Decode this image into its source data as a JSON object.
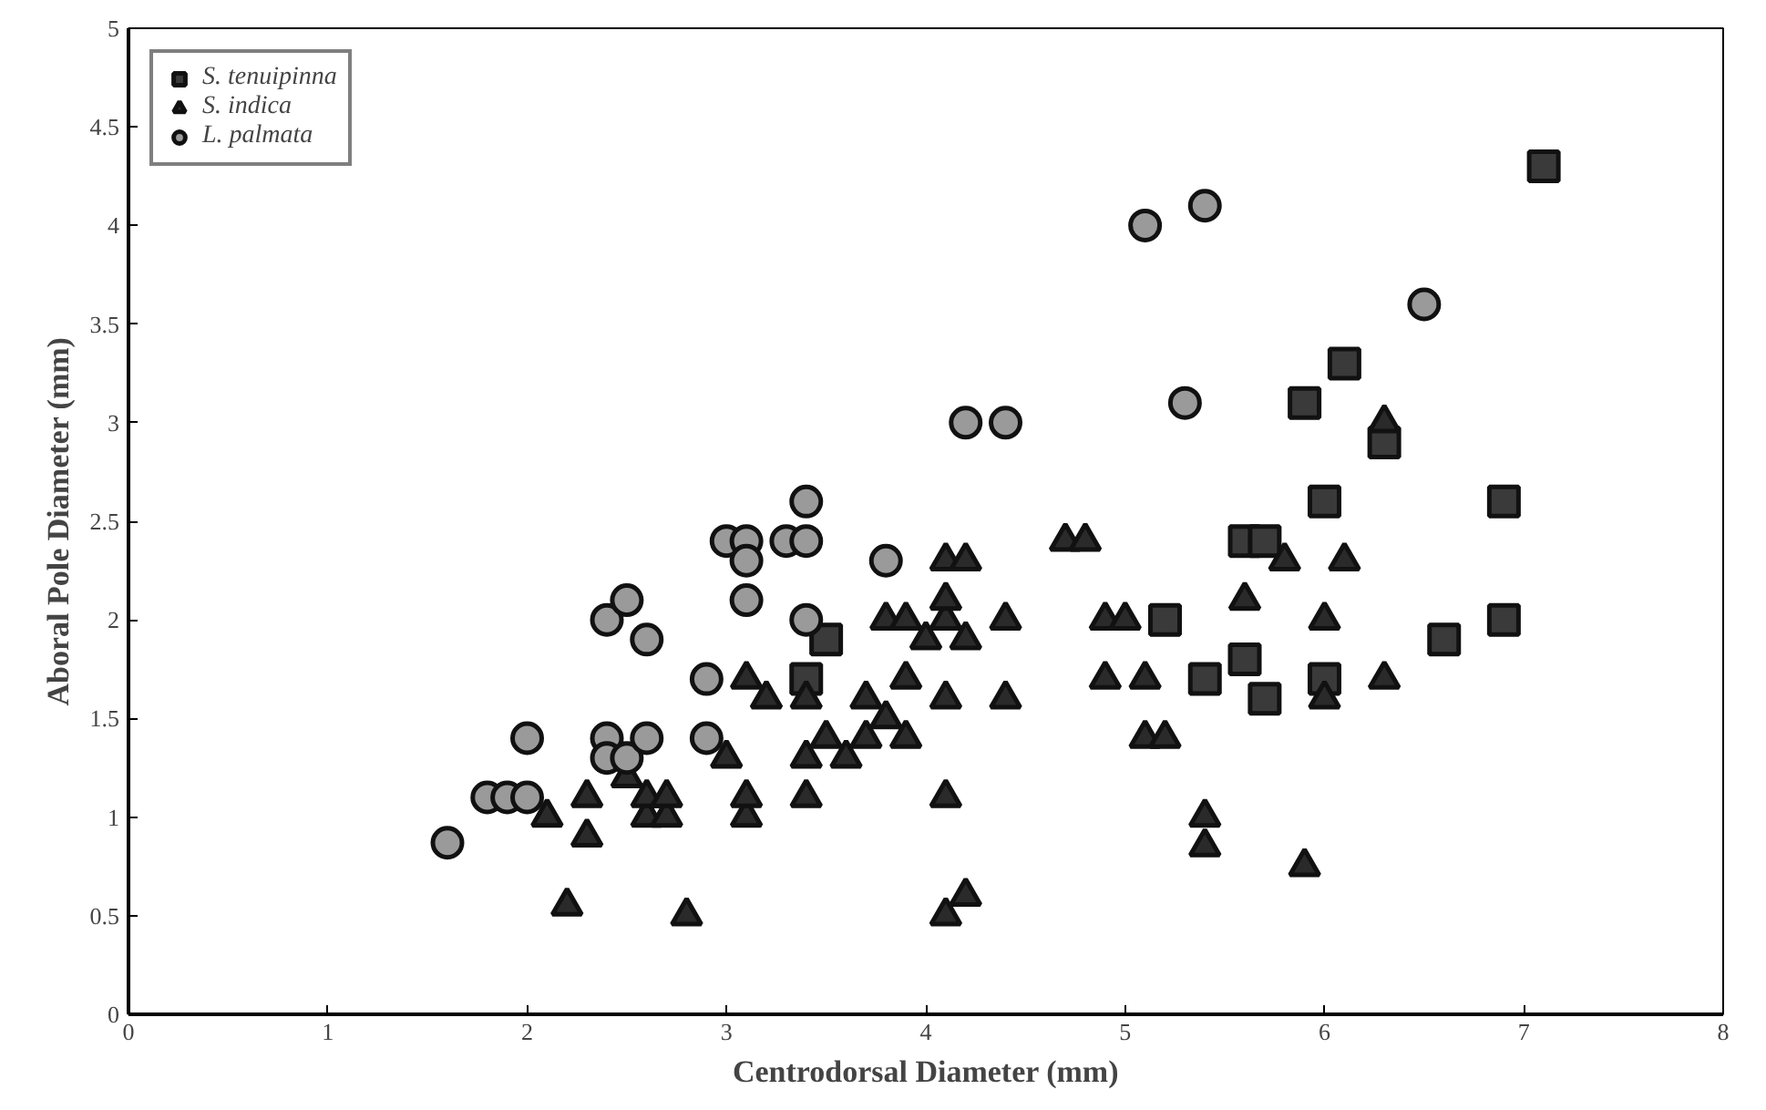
{
  "chart_data": {
    "type": "scatter",
    "xlabel": "Centrodorsal Diameter (mm)",
    "ylabel": "Aboral Pole Diameter (mm)",
    "xlim": [
      0,
      8
    ],
    "xticks": [
      0,
      1,
      2,
      3,
      4,
      5,
      6,
      7,
      8
    ],
    "ylim": [
      0,
      5
    ],
    "yticks": [
      0,
      0.5,
      1,
      1.5,
      2,
      2.5,
      3,
      3.5,
      4,
      4.5,
      5
    ],
    "grid": false,
    "legend": "top left",
    "series": [
      {
        "name": "S. tenuipinna",
        "color": "#3a3a3a",
        "marker": "square",
        "x": [
          3.4,
          3.5,
          5.2,
          5.4,
          5.6,
          5.6,
          5.7,
          5.7,
          5.9,
          6.0,
          6.0,
          6.1,
          6.3,
          6.6,
          6.9,
          6.9,
          7.1
        ],
        "values": [
          1.7,
          1.9,
          2.0,
          1.7,
          1.8,
          2.4,
          2.4,
          1.6,
          3.1,
          2.6,
          1.7,
          3.3,
          2.9,
          1.9,
          2.6,
          2.0,
          4.3
        ]
      },
      {
        "name": "S. indica",
        "color": "#2a2a2a",
        "marker": "triangle",
        "x": [
          2.1,
          2.2,
          2.3,
          2.3,
          2.5,
          2.6,
          2.6,
          2.7,
          2.7,
          2.8,
          3.0,
          3.1,
          3.1,
          3.1,
          3.2,
          3.4,
          3.4,
          3.4,
          3.5,
          3.6,
          3.7,
          3.7,
          3.8,
          3.8,
          3.9,
          3.9,
          3.9,
          4.0,
          4.1,
          4.1,
          4.1,
          4.1,
          4.1,
          4.1,
          4.2,
          4.2,
          4.2,
          4.4,
          4.4,
          4.7,
          4.8,
          4.9,
          4.9,
          5.0,
          5.1,
          5.1,
          5.2,
          5.4,
          5.4,
          5.6,
          5.8,
          5.9,
          6.0,
          6.0,
          6.1,
          6.3,
          6.3
        ],
        "values": [
          1.0,
          0.55,
          0.9,
          1.1,
          1.2,
          1.0,
          1.1,
          1.0,
          1.1,
          0.5,
          1.3,
          1.0,
          1.1,
          1.7,
          1.6,
          1.1,
          1.3,
          1.6,
          1.4,
          1.3,
          1.4,
          1.6,
          1.5,
          2.0,
          1.4,
          1.7,
          2.0,
          1.9,
          2.3,
          2.0,
          2.1,
          1.6,
          1.1,
          0.5,
          0.6,
          2.3,
          1.9,
          2.0,
          1.6,
          2.4,
          2.4,
          1.7,
          2.0,
          2.0,
          1.4,
          1.7,
          1.4,
          1.0,
          0.85,
          2.1,
          2.3,
          0.75,
          2.0,
          1.6,
          2.3,
          1.7,
          3.0
        ]
      },
      {
        "name": "L. palmata",
        "color": "#9a9a9a",
        "marker": "circle",
        "x": [
          1.6,
          1.8,
          1.9,
          2.0,
          2.0,
          2.4,
          2.4,
          2.5,
          2.6,
          2.4,
          2.5,
          2.6,
          2.9,
          2.9,
          3.0,
          3.1,
          3.1,
          3.1,
          3.3,
          3.4,
          3.4,
          3.4,
          3.8,
          4.2,
          4.4,
          5.1,
          5.4,
          5.3,
          6.5
        ],
        "values": [
          0.87,
          1.1,
          1.1,
          1.1,
          1.4,
          1.4,
          1.3,
          1.3,
          1.4,
          2.0,
          2.1,
          1.9,
          1.7,
          1.4,
          2.4,
          2.4,
          2.1,
          2.3,
          2.4,
          2.4,
          2.6,
          2.0,
          2.3,
          3.0,
          3.0,
          4.0,
          4.1,
          3.1,
          3.6
        ]
      }
    ]
  }
}
